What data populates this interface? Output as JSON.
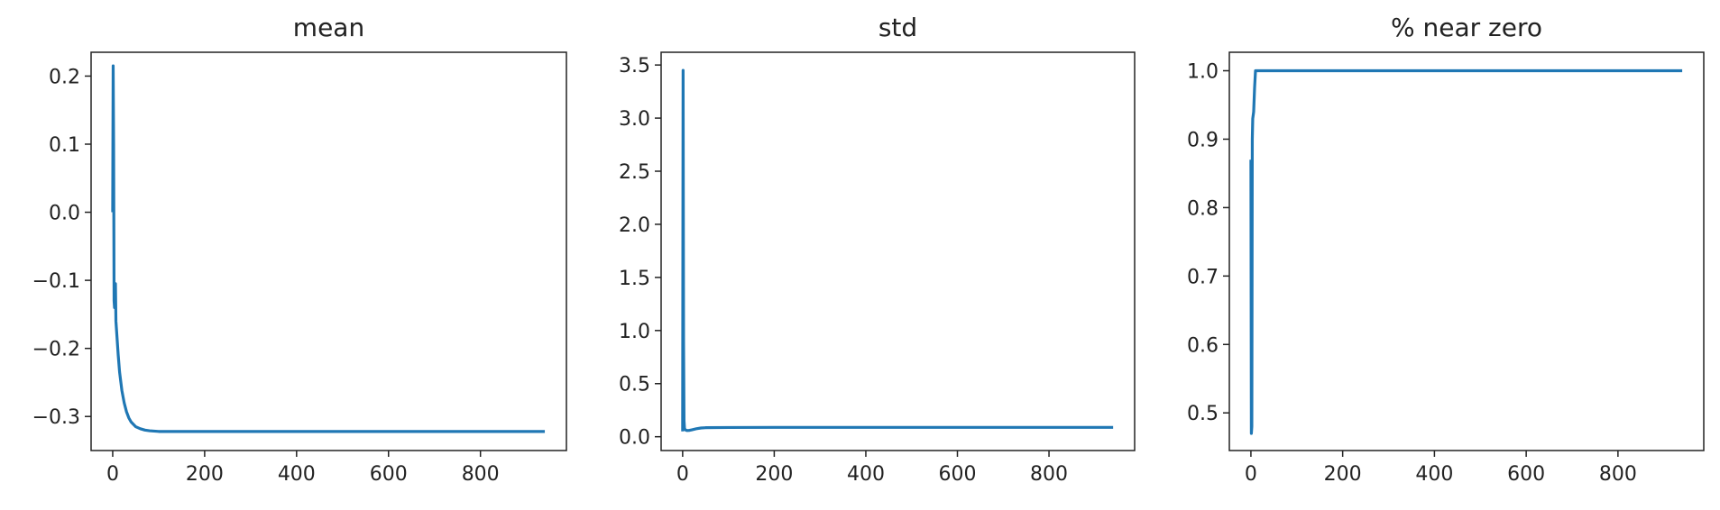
{
  "colors": {
    "line": "#1f77b4"
  },
  "chart_data": [
    {
      "type": "line",
      "title": "mean",
      "xlabel": "",
      "ylabel": "",
      "xlim": [
        -47,
        987
      ],
      "ylim": [
        -0.35,
        0.235
      ],
      "xticks": [
        0,
        200,
        400,
        600,
        800
      ],
      "xtick_labels": [
        "0",
        "200",
        "400",
        "600",
        "800"
      ],
      "yticks": [
        -0.3,
        -0.2,
        -0.1,
        0.0,
        0.1,
        0.2
      ],
      "ytick_labels": [
        "−0.3",
        "−0.2",
        "−0.1",
        "0.0",
        "0.1",
        "0.2"
      ],
      "grid": false,
      "series": [
        {
          "x": [
            0,
            1,
            2,
            3,
            4,
            5,
            6,
            7,
            8,
            10,
            12,
            15,
            20,
            25,
            30,
            35,
            40,
            50,
            60,
            70,
            80,
            100,
            150,
            200,
            400,
            600,
            800,
            940
          ],
          "y": [
            0.0,
            0.215,
            0.1,
            -0.13,
            -0.14,
            -0.11,
            -0.105,
            -0.16,
            -0.17,
            -0.19,
            -0.21,
            -0.235,
            -0.262,
            -0.28,
            -0.293,
            -0.302,
            -0.308,
            -0.315,
            -0.318,
            -0.32,
            -0.321,
            -0.322,
            -0.322,
            -0.322,
            -0.322,
            -0.322,
            -0.322,
            -0.322
          ]
        }
      ]
    },
    {
      "type": "line",
      "title": "std",
      "xlabel": "",
      "ylabel": "",
      "xlim": [
        -47,
        987
      ],
      "ylim": [
        -0.13,
        3.62
      ],
      "xticks": [
        0,
        200,
        400,
        600,
        800
      ],
      "xtick_labels": [
        "0",
        "200",
        "400",
        "600",
        "800"
      ],
      "yticks": [
        0.0,
        0.5,
        1.0,
        1.5,
        2.0,
        2.5,
        3.0,
        3.5
      ],
      "ytick_labels": [
        "0.0",
        "0.5",
        "1.0",
        "1.5",
        "2.0",
        "2.5",
        "3.0",
        "3.5"
      ],
      "grid": false,
      "series": [
        {
          "x": [
            0,
            1,
            2,
            3,
            4,
            5,
            6,
            8,
            10,
            15,
            20,
            30,
            40,
            50,
            100,
            200,
            400,
            600,
            800,
            940
          ],
          "y": [
            0.05,
            3.45,
            0.9,
            0.15,
            0.08,
            0.07,
            0.065,
            0.06,
            0.058,
            0.06,
            0.065,
            0.075,
            0.082,
            0.085,
            0.087,
            0.088,
            0.088,
            0.088,
            0.088,
            0.088
          ]
        }
      ]
    },
    {
      "type": "line",
      "title": "% near zero",
      "xlabel": "",
      "ylabel": "",
      "xlim": [
        -47,
        987
      ],
      "ylim": [
        0.445,
        1.027
      ],
      "xticks": [
        0,
        200,
        400,
        600,
        800
      ],
      "xtick_labels": [
        "0",
        "200",
        "400",
        "600",
        "800"
      ],
      "yticks": [
        0.5,
        0.6,
        0.7,
        0.8,
        0.9,
        1.0
      ],
      "ytick_labels": [
        "0.5",
        "0.6",
        "0.7",
        "0.8",
        "0.9",
        "1.0"
      ],
      "grid": false,
      "series": [
        {
          "x": [
            0,
            1,
            2,
            3,
            4,
            5,
            6,
            8,
            10,
            12,
            15,
            20,
            100,
            400,
            800,
            940
          ],
          "y": [
            0.87,
            0.47,
            0.48,
            0.9,
            0.93,
            0.935,
            0.94,
            0.975,
            1.0,
            1.0,
            1.0,
            1.0,
            1.0,
            1.0,
            1.0,
            1.0
          ]
        }
      ]
    }
  ]
}
